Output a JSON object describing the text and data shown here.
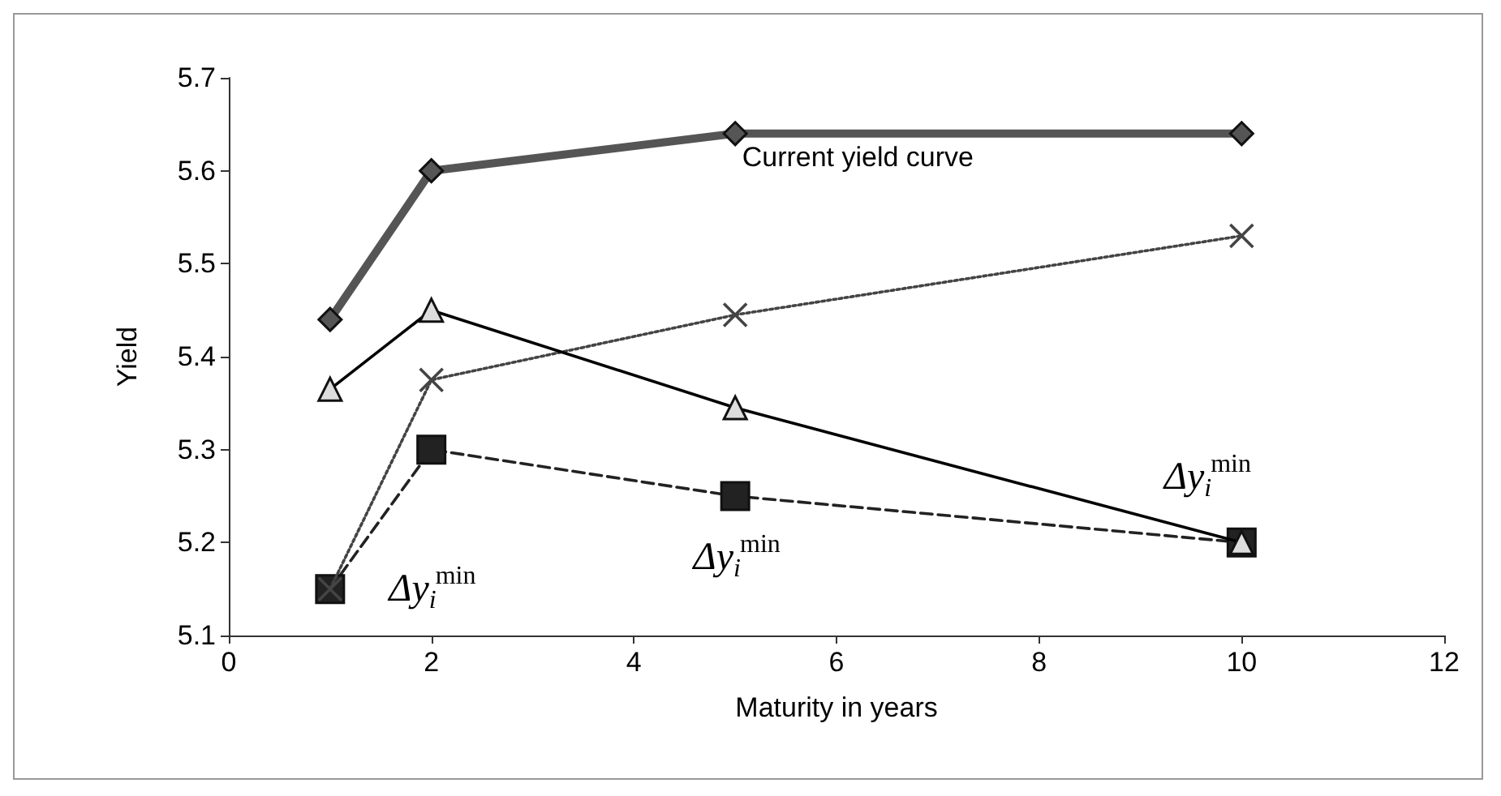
{
  "chart_data": {
    "type": "line",
    "xlabel": "Maturity in years",
    "ylabel": "Yield",
    "x": [
      1,
      2,
      5,
      10
    ],
    "series": [
      {
        "name": "Current yield curve",
        "color": "#555555",
        "marker": "diamond",
        "line_style": "solid",
        "values": [
          5.44,
          5.6,
          5.64,
          5.64
        ]
      },
      {
        "color": "#000000",
        "marker": "triangle",
        "line_style": "solid",
        "values": [
          5.365,
          5.45,
          5.345,
          5.2
        ]
      },
      {
        "color": "#444444",
        "marker": "cross",
        "line_style": "dotted",
        "values": [
          5.15,
          5.375,
          5.445,
          5.53
        ]
      },
      {
        "color": "#222222",
        "marker": "square",
        "line_style": "dashed",
        "values": [
          5.15,
          5.3,
          5.25,
          5.2
        ]
      }
    ],
    "annotations": [
      {
        "text": "Δy$_{i}$$^{min}$",
        "x": 1,
        "y": 5.15
      },
      {
        "text": "Δy$_{i}$$^{min}$",
        "x": 5,
        "y": 5.25
      },
      {
        "text": "Δy$_{i}$$^{min}$",
        "x": 10,
        "y": 5.2
      }
    ],
    "xlim": [
      0,
      12
    ],
    "xticks": [
      0,
      2,
      4,
      6,
      8,
      10,
      12
    ],
    "ylim": [
      5.1,
      5.7
    ],
    "yticks": [
      5.1,
      5.2,
      5.3,
      5.4,
      5.5,
      5.6,
      5.7
    ],
    "grid": false,
    "legend": false
  }
}
